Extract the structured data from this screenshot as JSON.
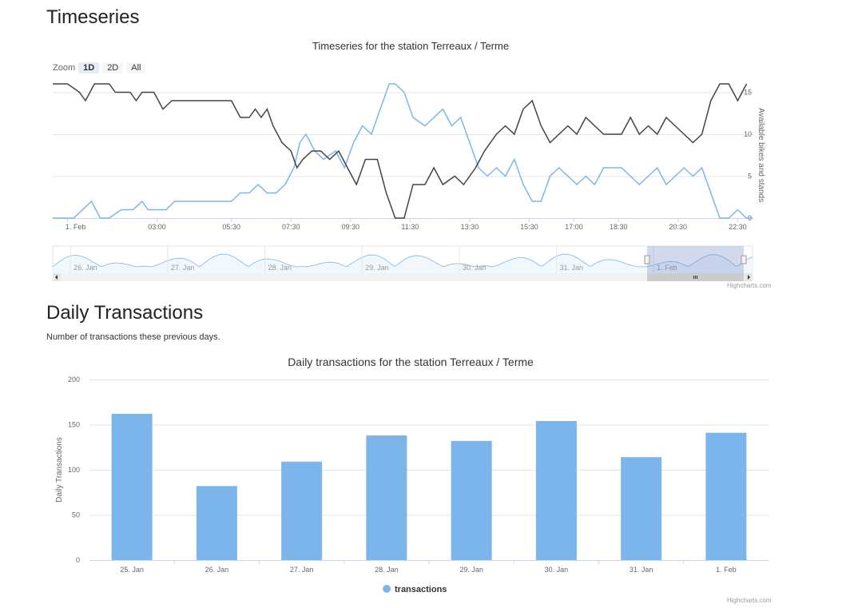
{
  "sections": {
    "timeseries_heading": "Timeseries",
    "daily_heading": "Daily Transactions",
    "daily_subtitle": "Number of transactions these previous days."
  },
  "zoom": {
    "label": "Zoom",
    "buttons": [
      "1D",
      "2D",
      "All"
    ],
    "active": "1D"
  },
  "credits": "Highcharts.com",
  "colors": {
    "bikes": "#7cb5ec",
    "stands": "#434348",
    "bar": "#7cb5ec"
  },
  "chart_data": [
    {
      "type": "line",
      "title": "Timeseries for the station Terreaux / Terme",
      "ylabel": "Available bikes and stands",
      "yaxis_position": "right",
      "ylim": [
        0,
        16
      ],
      "yticks": [
        0,
        5,
        10,
        15
      ],
      "x_tick_labels": [
        "1. Feb",
        "03:00",
        "05:30",
        "07:30",
        "09:30",
        "11:30",
        "13:30",
        "15:30",
        "17:00",
        "18:30",
        "20:30",
        "22:30"
      ],
      "x_tick_hours": [
        0,
        3,
        5.5,
        7.5,
        9.5,
        11.5,
        13.5,
        15.5,
        17,
        18.5,
        20.5,
        22.5
      ],
      "xlim_hours": [
        -0.5,
        23
      ],
      "series": [
        {
          "color": "#7cb5ec",
          "points": [
            [
              -0.5,
              0
            ],
            [
              0.2,
              0
            ],
            [
              0.5,
              1
            ],
            [
              0.8,
              2
            ],
            [
              1.1,
              0
            ],
            [
              1.4,
              0
            ],
            [
              1.8,
              1
            ],
            [
              2.2,
              1
            ],
            [
              2.5,
              2
            ],
            [
              2.7,
              1
            ],
            [
              3.3,
              1
            ],
            [
              3.6,
              2
            ],
            [
              4,
              2
            ],
            [
              5,
              2
            ],
            [
              5.5,
              2
            ],
            [
              5.8,
              3
            ],
            [
              6.1,
              3
            ],
            [
              6.4,
              4
            ],
            [
              6.7,
              3
            ],
            [
              7,
              3
            ],
            [
              7.3,
              4
            ],
            [
              7.6,
              6
            ],
            [
              7.8,
              9
            ],
            [
              8,
              10
            ],
            [
              8.3,
              8
            ],
            [
              8.6,
              7
            ],
            [
              9,
              8
            ],
            [
              9.3,
              6
            ],
            [
              9.6,
              9
            ],
            [
              9.9,
              11
            ],
            [
              10.2,
              10
            ],
            [
              10.5,
              13
            ],
            [
              10.8,
              16
            ],
            [
              11,
              16
            ],
            [
              11.3,
              15
            ],
            [
              11.6,
              12
            ],
            [
              12,
              11
            ],
            [
              12.3,
              12
            ],
            [
              12.6,
              13
            ],
            [
              12.9,
              11
            ],
            [
              13.2,
              12
            ],
            [
              13.5,
              9
            ],
            [
              13.8,
              6
            ],
            [
              14.1,
              5
            ],
            [
              14.4,
              6
            ],
            [
              14.7,
              5
            ],
            [
              15,
              7
            ],
            [
              15.3,
              4
            ],
            [
              15.6,
              2
            ],
            [
              15.9,
              2
            ],
            [
              16.2,
              5
            ],
            [
              16.5,
              6
            ],
            [
              16.8,
              5
            ],
            [
              17.1,
              4
            ],
            [
              17.4,
              5
            ],
            [
              17.7,
              4
            ],
            [
              18,
              6
            ],
            [
              18.6,
              6
            ],
            [
              18.9,
              5
            ],
            [
              19.2,
              4
            ],
            [
              19.5,
              5
            ],
            [
              19.8,
              6
            ],
            [
              20.1,
              4
            ],
            [
              20.4,
              5
            ],
            [
              20.7,
              6
            ],
            [
              21,
              5
            ],
            [
              21.3,
              6
            ],
            [
              21.6,
              3
            ],
            [
              21.9,
              0
            ],
            [
              22.2,
              0
            ],
            [
              22.5,
              1
            ],
            [
              22.8,
              0
            ],
            [
              23,
              0
            ]
          ]
        },
        {
          "color": "#434348",
          "points": [
            [
              -0.5,
              16
            ],
            [
              0,
              16
            ],
            [
              0.4,
              15
            ],
            [
              0.6,
              14
            ],
            [
              0.9,
              16
            ],
            [
              1.4,
              16
            ],
            [
              1.6,
              15
            ],
            [
              2.1,
              15
            ],
            [
              2.3,
              14
            ],
            [
              2.5,
              15
            ],
            [
              2.9,
              15
            ],
            [
              3.2,
              13
            ],
            [
              3.5,
              14
            ],
            [
              5.5,
              14
            ],
            [
              5.8,
              12
            ],
            [
              6.1,
              12
            ],
            [
              6.3,
              13
            ],
            [
              6.5,
              12
            ],
            [
              6.7,
              13
            ],
            [
              6.9,
              11
            ],
            [
              7.2,
              9
            ],
            [
              7.5,
              8
            ],
            [
              7.7,
              6
            ],
            [
              7.9,
              7
            ],
            [
              8.2,
              8
            ],
            [
              8.5,
              8
            ],
            [
              8.8,
              7
            ],
            [
              9.1,
              8
            ],
            [
              9.4,
              6
            ],
            [
              9.7,
              4
            ],
            [
              10,
              7
            ],
            [
              10.4,
              7
            ],
            [
              10.7,
              3
            ],
            [
              11,
              0
            ],
            [
              11.3,
              0
            ],
            [
              11.6,
              4
            ],
            [
              12,
              4
            ],
            [
              12.3,
              6
            ],
            [
              12.6,
              4
            ],
            [
              13,
              5
            ],
            [
              13.3,
              4
            ],
            [
              13.7,
              6
            ],
            [
              14,
              8
            ],
            [
              14.4,
              10
            ],
            [
              14.7,
              11
            ],
            [
              15,
              10
            ],
            [
              15.3,
              13
            ],
            [
              15.6,
              14
            ],
            [
              15.9,
              11
            ],
            [
              16.2,
              9
            ],
            [
              16.5,
              10
            ],
            [
              16.8,
              11
            ],
            [
              17.1,
              10
            ],
            [
              17.4,
              12
            ],
            [
              17.7,
              11
            ],
            [
              18,
              10
            ],
            [
              18.6,
              10
            ],
            [
              18.9,
              12
            ],
            [
              19.2,
              10
            ],
            [
              19.5,
              11
            ],
            [
              19.8,
              10
            ],
            [
              20.1,
              12
            ],
            [
              20.4,
              11
            ],
            [
              20.7,
              10
            ],
            [
              21,
              9
            ],
            [
              21.3,
              10
            ],
            [
              21.6,
              14
            ],
            [
              21.9,
              16
            ],
            [
              22.2,
              16
            ],
            [
              22.5,
              14
            ],
            [
              22.8,
              16
            ]
          ]
        }
      ]
    },
    {
      "type": "bar",
      "title": "Daily transactions for the station Terreaux / Terme",
      "ylabel": "Daily Transactions",
      "ylim": [
        0,
        200
      ],
      "yticks": [
        0,
        50,
        100,
        150,
        200
      ],
      "categories": [
        "25. Jan",
        "26. Jan",
        "27. Jan",
        "28. Jan",
        "29. Jan",
        "30. Jan",
        "31. Jan",
        "1. Feb"
      ],
      "series": [
        {
          "name": "transactions",
          "values": [
            162,
            82,
            109,
            138,
            132,
            154,
            114,
            141
          ]
        }
      ],
      "legend": "bottom-center"
    }
  ],
  "navigator": {
    "labels": [
      "26. Jan",
      "27. Jan",
      "28. Jan",
      "29. Jan",
      "30. Jan",
      "31. Jan",
      "1. Feb"
    ]
  }
}
